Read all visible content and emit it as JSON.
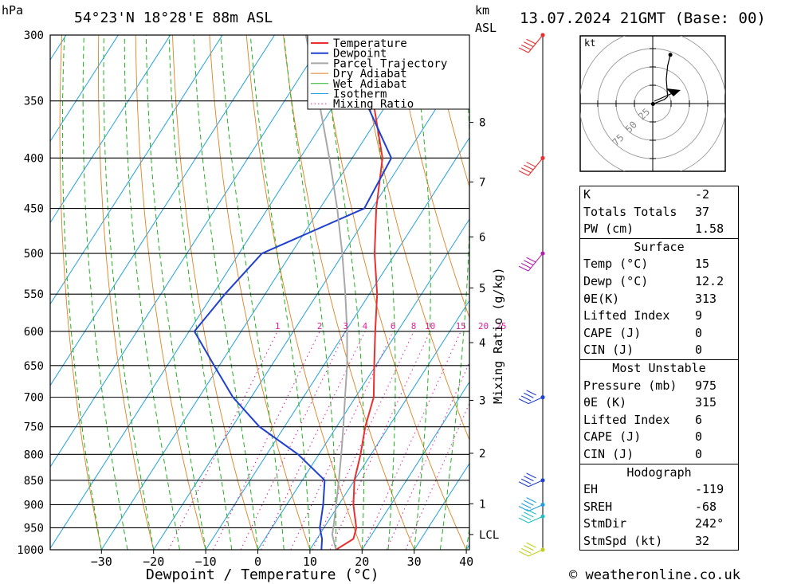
{
  "header": {
    "unit_hpa": "hPa",
    "location": "54°23'N  18°28'E  88m  ASL",
    "unit_km": "km",
    "unit_asl": "ASL",
    "datetime": "13.07.2024  21GMT  (Base: 00)"
  },
  "chart_data": {
    "type": "line",
    "xlabel": "Dewpoint / Temperature (°C)",
    "ylabel": "hPa",
    "mixing_ratio_label": "Mixing Ratio (g/kg)",
    "xlim": [
      -40,
      40
    ],
    "ylim": [
      1000,
      300
    ],
    "pressure_levels": [
      300,
      350,
      400,
      450,
      500,
      550,
      600,
      650,
      700,
      750,
      800,
      850,
      900,
      950,
      1000
    ],
    "x_ticks": [
      -30,
      -20,
      -10,
      0,
      10,
      20,
      30,
      40
    ],
    "height_ticks_km": [
      {
        "label": "8",
        "p": 368
      },
      {
        "label": "7",
        "p": 423
      },
      {
        "label": "6",
        "p": 481
      },
      {
        "label": "5",
        "p": 542
      },
      {
        "label": "4",
        "p": 616
      },
      {
        "label": "3",
        "p": 705
      },
      {
        "label": "2",
        "p": 798
      },
      {
        "label": "1",
        "p": 898
      },
      {
        "label": "LCL",
        "p": 965
      }
    ],
    "mixing_ratio_values": [
      "1",
      "2",
      "3",
      "4",
      "6",
      "8",
      "10",
      "15",
      "20",
      "25"
    ],
    "legend": [
      "Temperature",
      "Dewpoint",
      "Parcel Trajectory",
      "Dry Adiabat",
      "Wet Adiabat",
      "Isotherm",
      "Mixing Ratio"
    ],
    "colors": {
      "temperature": "#e83030",
      "dewpoint": "#2040d0",
      "parcel": "#a8a8a8",
      "dry_adiabat": "#e08020",
      "wet_adiabat": "#20b020",
      "isotherm": "#20a0e0",
      "mixing_ratio": "#e020a0"
    },
    "series": [
      {
        "name": "Temperature",
        "points": [
          [
            1000,
            15
          ],
          [
            975,
            17
          ],
          [
            950,
            16.2
          ],
          [
            900,
            12.8
          ],
          [
            850,
            10
          ],
          [
            800,
            8
          ],
          [
            750,
            5.5
          ],
          [
            700,
            3.5
          ],
          [
            650,
            -0.3
          ],
          [
            600,
            -4.3
          ],
          [
            550,
            -8.5
          ],
          [
            500,
            -14
          ],
          [
            450,
            -19.2
          ],
          [
            400,
            -24.2
          ],
          [
            350,
            -33
          ],
          [
            300,
            -42.5
          ]
        ]
      },
      {
        "name": "Dewpoint",
        "points": [
          [
            1000,
            12.2
          ],
          [
            975,
            11
          ],
          [
            950,
            9.2
          ],
          [
            900,
            7
          ],
          [
            850,
            4.3
          ],
          [
            800,
            -4
          ],
          [
            750,
            -14.8
          ],
          [
            700,
            -23.5
          ],
          [
            650,
            -31
          ],
          [
            600,
            -39
          ],
          [
            550,
            -37.7
          ],
          [
            500,
            -35.6
          ],
          [
            450,
            -21.5
          ],
          [
            400,
            -22.5
          ],
          [
            350,
            -34.5
          ],
          [
            300,
            -45
          ]
        ]
      },
      {
        "name": "Parcel Trajectory",
        "points": [
          [
            1000,
            15
          ],
          [
            965,
            12.4
          ],
          [
            950,
            11.8
          ],
          [
            900,
            9.5
          ],
          [
            850,
            7
          ],
          [
            800,
            4.3
          ],
          [
            750,
            1.3
          ],
          [
            700,
            -2
          ],
          [
            650,
            -5.5
          ],
          [
            600,
            -9.7
          ],
          [
            550,
            -14.6
          ],
          [
            500,
            -20.2
          ],
          [
            450,
            -26.7
          ],
          [
            400,
            -34.4
          ],
          [
            350,
            -43.4
          ],
          [
            300,
            -54
          ]
        ]
      }
    ],
    "wind_barbs": [
      {
        "p": 300,
        "color": "#e83030"
      },
      {
        "p": 400,
        "color": "#e83030"
      },
      {
        "p": 500,
        "color": "#b020b0"
      },
      {
        "p": 700,
        "color": "#2040d0"
      },
      {
        "p": 850,
        "color": "#2040d0"
      },
      {
        "p": 900,
        "color": "#20a0e0"
      },
      {
        "p": 925,
        "color": "#20c0c0"
      },
      {
        "p": 1000,
        "color": "#c0d020"
      }
    ],
    "hodograph": {
      "unit": "kt",
      "ring_labels": [
        "25",
        "50",
        "75"
      ],
      "trace": [
        [
          0.2,
          -0.3
        ],
        [
          8.5,
          3
        ],
        [
          11,
          5
        ],
        [
          10,
          18
        ],
        [
          11,
          28
        ],
        [
          13,
          36
        ]
      ]
    }
  },
  "indices": {
    "basic": [
      {
        "k": "K",
        "v": "-2"
      },
      {
        "k": "Totals Totals",
        "v": "37"
      },
      {
        "k": "PW (cm)",
        "v": "1.58"
      }
    ],
    "surface_title": "Surface",
    "surface": [
      {
        "k": "Temp (°C)",
        "v": "15"
      },
      {
        "k": "Dewp (°C)",
        "v": "12.2"
      },
      {
        "k": "θE(K)",
        "v": "313"
      },
      {
        "k": "Lifted Index",
        "v": "9"
      },
      {
        "k": "CAPE (J)",
        "v": "0"
      },
      {
        "k": "CIN (J)",
        "v": "0"
      }
    ],
    "unstable_title": "Most Unstable",
    "unstable": [
      {
        "k": "Pressure (mb)",
        "v": "975"
      },
      {
        "k": "θE (K)",
        "v": "315"
      },
      {
        "k": "Lifted Index",
        "v": "6"
      },
      {
        "k": "CAPE (J)",
        "v": "0"
      },
      {
        "k": "CIN (J)",
        "v": "0"
      }
    ],
    "hodo_title": "Hodograph",
    "hodo": [
      {
        "k": "EH",
        "v": "-119"
      },
      {
        "k": "SREH",
        "v": "-68"
      },
      {
        "k": "StmDir",
        "v": "242°"
      },
      {
        "k": "StmSpd (kt)",
        "v": "32"
      }
    ]
  },
  "footer": {
    "copyright": "© weatheronline.co.uk"
  }
}
